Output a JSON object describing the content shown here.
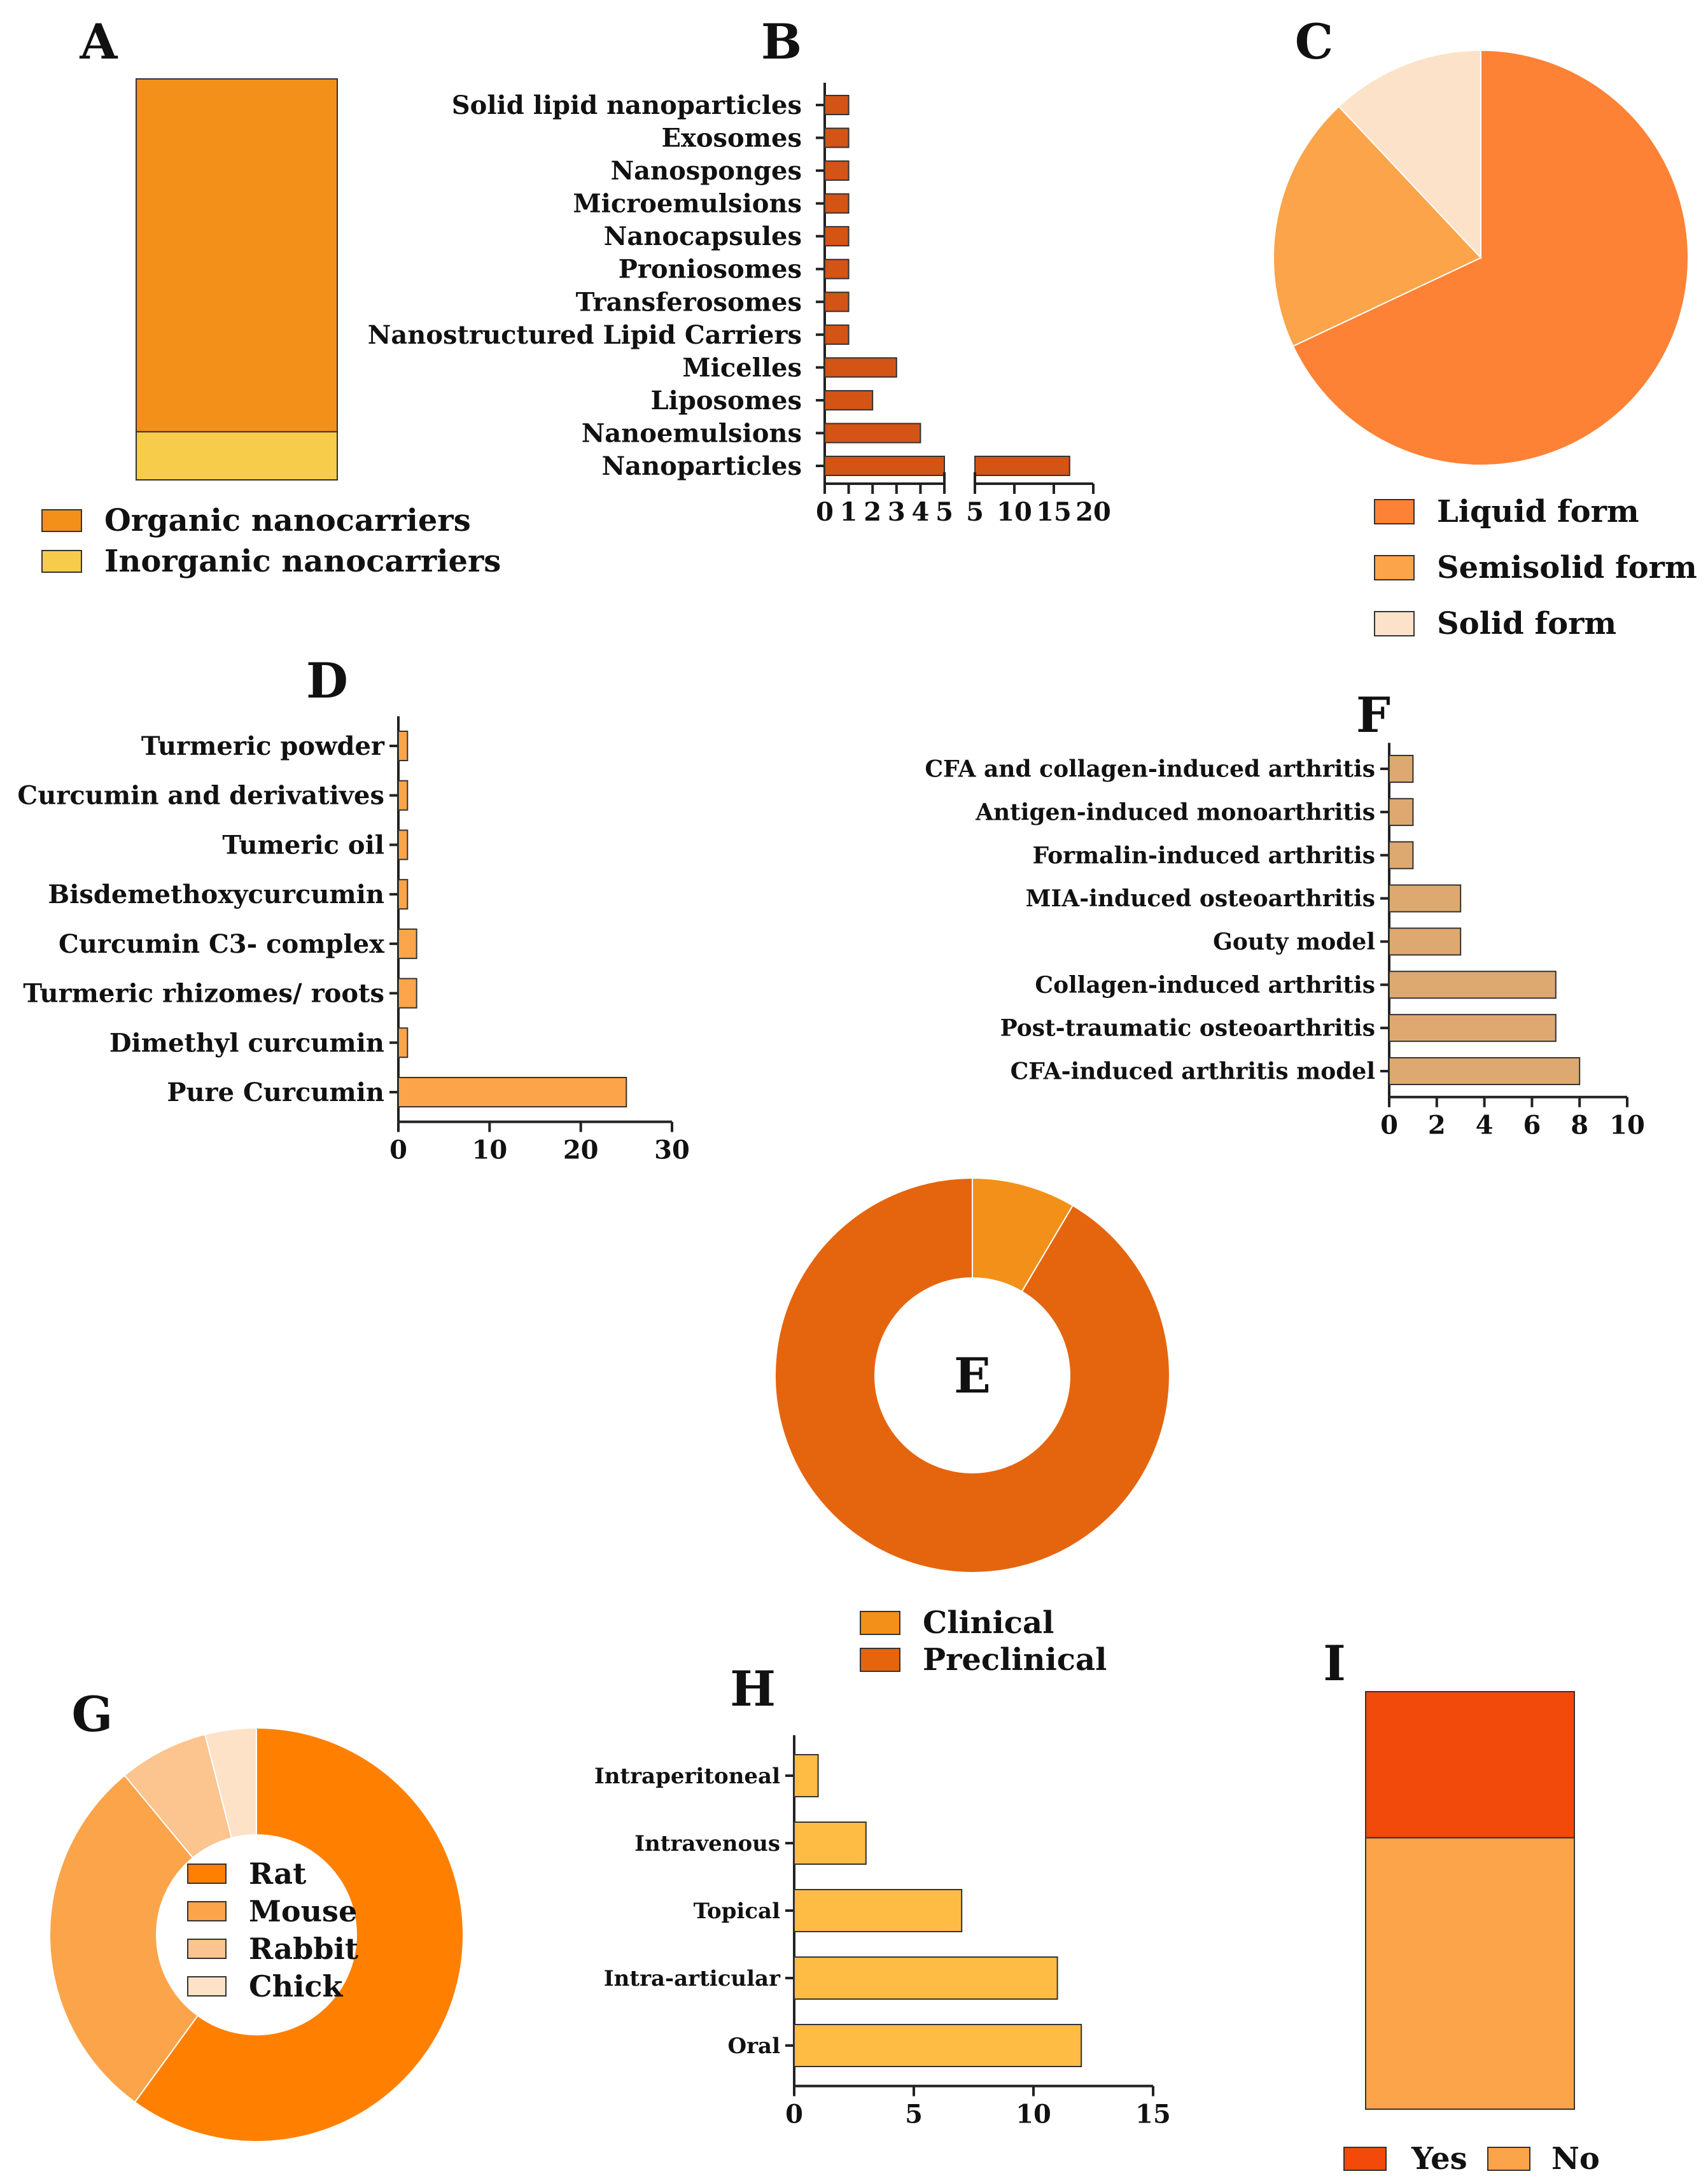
{
  "chart_data": [
    {
      "panel": "A",
      "type": "bar",
      "stacked": true,
      "series": [
        {
          "name": "Organic nanocarriers",
          "value": 88,
          "color": "#F39019"
        },
        {
          "name": "Inorganic nanocarriers",
          "value": 12,
          "color": "#F7CC4A"
        }
      ],
      "legend": "bottom"
    },
    {
      "panel": "B",
      "type": "bar",
      "orientation": "horizontal",
      "broken_axis": true,
      "categories": [
        "Solid lipid nanoparticles",
        "Exosomes",
        "Nanosponges",
        "Microemulsions",
        "Nanocapsules",
        "Proniosomes",
        "Transferosomes",
        "Nanostructured Lipid Carriers",
        "Micelles",
        "Liposomes",
        "Nanoemulsions",
        "Nanoparticles"
      ],
      "values": [
        1,
        1,
        1,
        1,
        1,
        1,
        1,
        1,
        3,
        2,
        4,
        17
      ],
      "color": "#D35414",
      "axis_segment_1": {
        "range": [
          0,
          5
        ],
        "ticks": [
          "0",
          "1",
          "2",
          "3",
          "4",
          "5"
        ]
      },
      "axis_segment_2": {
        "range": [
          5,
          20
        ],
        "ticks": [
          "5",
          "10",
          "15",
          "20"
        ]
      }
    },
    {
      "panel": "C",
      "type": "pie",
      "slices": [
        {
          "name": "Liquid form",
          "value": 68,
          "color": "#FD8235"
        },
        {
          "name": "Semisolid form",
          "value": 20,
          "color": "#FBA44A"
        },
        {
          "name": "Solid form",
          "value": 12,
          "color": "#FCE2C8"
        }
      ],
      "legend": "bottom"
    },
    {
      "panel": "D",
      "type": "bar",
      "orientation": "horizontal",
      "categories": [
        "Turmeric powder",
        "Curcumin and derivatives",
        "Tumeric oil",
        "Bisdemethoxycurcumin",
        "Curcumin C3- complex",
        "Turmeric rhizomes/ roots",
        "Dimethyl curcumin",
        "Pure Curcumin"
      ],
      "values": [
        1,
        1,
        1,
        1,
        2,
        2,
        1,
        25
      ],
      "color": "#FBA44A",
      "xlim": [
        0,
        30
      ],
      "ticks": [
        "0",
        "10",
        "20",
        "30"
      ]
    },
    {
      "panel": "E",
      "type": "donut",
      "slices": [
        {
          "name": "Clinical",
          "value": 8.5,
          "color": "#F39019"
        },
        {
          "name": "Preclinical",
          "value": 91.5,
          "color": "#E5650F"
        }
      ],
      "center_label": "E",
      "legend": "bottom"
    },
    {
      "panel": "F",
      "type": "bar",
      "orientation": "horizontal",
      "categories": [
        "CFA and collagen-induced arthritis",
        "Antigen-induced monoarthritis",
        "Formalin-induced arthritis",
        "MIA-induced osteoarthritis",
        "Gouty model",
        "Collagen-induced arthritis",
        "Post-traumatic osteoarthritis",
        "CFA-induced arthritis model"
      ],
      "values": [
        1,
        1,
        1,
        3,
        3,
        7,
        7,
        8
      ],
      "color": "#DEA970",
      "xlim": [
        0,
        10
      ],
      "ticks": [
        "0",
        "2",
        "4",
        "6",
        "8",
        "10"
      ]
    },
    {
      "panel": "G",
      "type": "donut",
      "slices": [
        {
          "name": "Rat",
          "value": 60,
          "color": "#FF8000"
        },
        {
          "name": "Mouse",
          "value": 29,
          "color": "#FBA44A"
        },
        {
          "name": "Rabbit",
          "value": 7,
          "color": "#FCC48E"
        },
        {
          "name": "Chick",
          "value": 4,
          "color": "#FDE2C8"
        }
      ],
      "legend": "center"
    },
    {
      "panel": "H",
      "type": "bar",
      "orientation": "horizontal",
      "categories": [
        "Intraperitoneal",
        "Intravenous",
        "Topical",
        "Intra-articular",
        "Oral"
      ],
      "values": [
        1,
        3,
        7,
        11,
        12
      ],
      "color": "#FFBC45",
      "xlim": [
        0,
        15
      ],
      "ticks": [
        "0",
        "5",
        "10",
        "15"
      ]
    },
    {
      "panel": "I",
      "type": "bar",
      "stacked": true,
      "series": [
        {
          "name": "Yes",
          "value": 35,
          "color": "#F14A0A"
        },
        {
          "name": "No",
          "value": 65,
          "color": "#FBA44A"
        }
      ],
      "legend": "bottom"
    }
  ],
  "panel_labels": {
    "A": "A",
    "B": "B",
    "C": "C",
    "D": "D",
    "F": "F",
    "G": "G",
    "H": "H",
    "I": "I"
  }
}
